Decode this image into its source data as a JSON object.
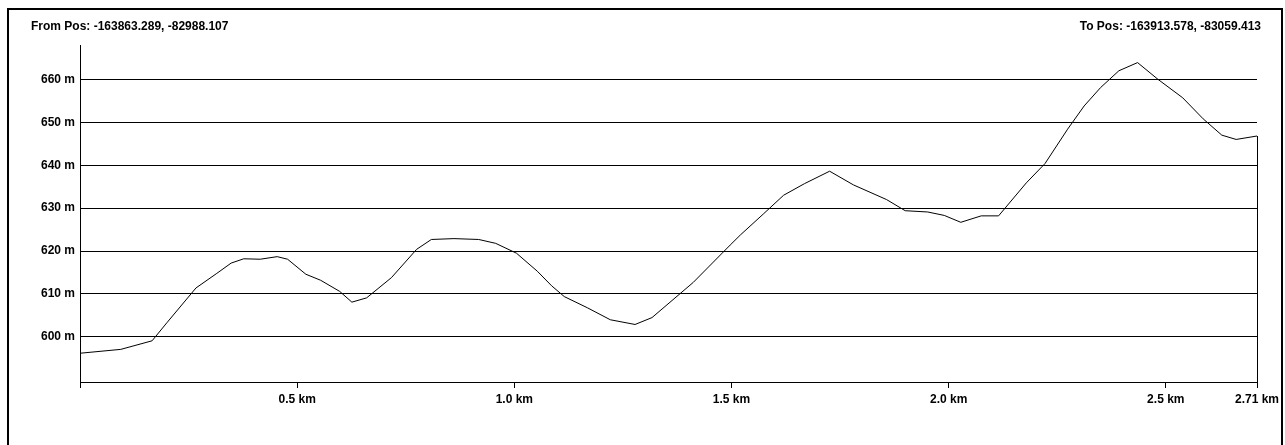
{
  "chart_data": {
    "type": "line",
    "annotations": [
      "From Pos: -163863.289, -82988.107",
      "To Pos: -163913.578, -83059.413"
    ],
    "x": [
      0,
      0.094,
      0.166,
      0.2,
      0.267,
      0.315,
      0.348,
      0.377,
      0.415,
      0.454,
      0.478,
      0.52,
      0.554,
      0.598,
      0.626,
      0.66,
      0.717,
      0.775,
      0.809,
      0.861,
      0.918,
      0.957,
      1.005,
      1.053,
      1.086,
      1.115,
      1.168,
      1.221,
      1.278,
      1.317,
      1.412,
      1.497,
      1.521,
      1.573,
      1.62,
      1.668,
      1.726,
      1.781,
      1.857,
      1.9,
      1.952,
      1.99,
      2.028,
      2.075,
      2.115,
      2.179,
      2.222,
      2.274,
      2.312,
      2.35,
      2.392,
      2.435,
      2.482,
      2.539,
      2.586,
      2.629,
      2.662,
      2.71
    ],
    "values": [
      596.2,
      597.1,
      599.1,
      603.3,
      611.4,
      614.8,
      617.2,
      618.2,
      618.1,
      618.7,
      618.1,
      614.6,
      613.2,
      610.6,
      608.1,
      609.1,
      613.8,
      620.4,
      622.7,
      622.9,
      622.7,
      621.8,
      619.5,
      615.3,
      611.9,
      609.4,
      606.8,
      604.0,
      602.9,
      604.5,
      612.7,
      621.4,
      623.8,
      628.6,
      633.0,
      635.7,
      638.6,
      635.4,
      632.0,
      629.4,
      629.1,
      628.3,
      626.7,
      628.2,
      628.2,
      635.9,
      640.4,
      648.4,
      653.8,
      658.1,
      662.0,
      663.9,
      660.0,
      655.7,
      650.8,
      647.0,
      646.0,
      646.8
    ],
    "color": "#000000",
    "marker": "none",
    "grid": "y",
    "xlim": [
      0,
      2.71
    ],
    "ylim": [
      589.5,
      668
    ],
    "xticks": [
      {
        "value": 0,
        "label": null
      },
      {
        "value": 0.5,
        "label": "0.5 km"
      },
      {
        "value": 1.0,
        "label": "1.0 km"
      },
      {
        "value": 1.5,
        "label": "1.5 km"
      },
      {
        "value": 2.0,
        "label": "2.0 km"
      },
      {
        "value": 2.5,
        "label": "2.5 km"
      },
      {
        "value": 2.71,
        "label": "2.71 km"
      }
    ],
    "yticks": [
      {
        "value": 600,
        "label": "600 m"
      },
      {
        "value": 610,
        "label": "610 m"
      },
      {
        "value": 620,
        "label": "620 m"
      },
      {
        "value": 630,
        "label": "630 m"
      },
      {
        "value": 640,
        "label": "640 m"
      },
      {
        "value": 650,
        "label": "650 m"
      },
      {
        "value": 660,
        "label": "660 m"
      }
    ]
  }
}
